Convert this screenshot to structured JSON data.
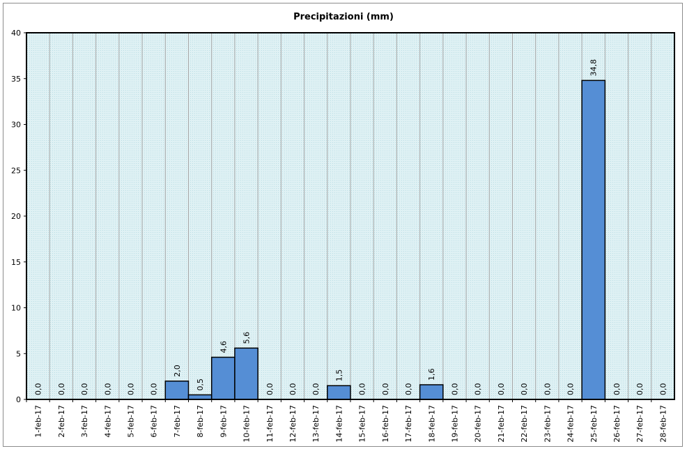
{
  "chart_data": {
    "type": "bar",
    "title": "Precipitazioni (mm)",
    "xlabel": "",
    "ylabel": "",
    "ylim": [
      0,
      40
    ],
    "yticks": [
      "0",
      "5",
      "10",
      "15",
      "20",
      "25",
      "30",
      "35",
      "40"
    ],
    "grid": true,
    "legend": "none",
    "categories": [
      "1-feb-17",
      "2-feb-17",
      "3-feb-17",
      "4-feb-17",
      "5-feb-17",
      "6-feb-17",
      "7-feb-17",
      "8-feb-17",
      "9-feb-17",
      "10-feb-17",
      "11-feb-17",
      "12-feb-17",
      "13-feb-17",
      "14-feb-17",
      "15-feb-17",
      "16-feb-17",
      "17-feb-17",
      "18-feb-17",
      "19-feb-17",
      "20-feb-17",
      "21-feb-17",
      "22-feb-17",
      "23-feb-17",
      "24-feb-17",
      "25-feb-17",
      "26-feb-17",
      "27-feb-17",
      "28-feb-17"
    ],
    "values": [
      0,
      0,
      0,
      0,
      0,
      0,
      2.0,
      0.5,
      4.6,
      5.6,
      0,
      0,
      0,
      1.5,
      0,
      0,
      0,
      1.6,
      0,
      0,
      0,
      0,
      0,
      0,
      34.8,
      0,
      0,
      0
    ],
    "data_labels": [
      "0,0",
      "0,0",
      "0,0",
      "0,0",
      "0,0",
      "0,0",
      "2,0",
      "0,5",
      "4,6",
      "5,6",
      "0,0",
      "0,0",
      "0,0",
      "1,5",
      "0,0",
      "0,0",
      "0,0",
      "1,6",
      "0,0",
      "0,0",
      "0,0",
      "0,0",
      "0,0",
      "0,0",
      "34,8",
      "0,0",
      "0,0",
      "0,0"
    ],
    "colors": {
      "bar": "#558ed5",
      "bar_stroke": "#000000",
      "plot_bg": "#d9eef3",
      "gridline": "#a6a6a6"
    }
  }
}
